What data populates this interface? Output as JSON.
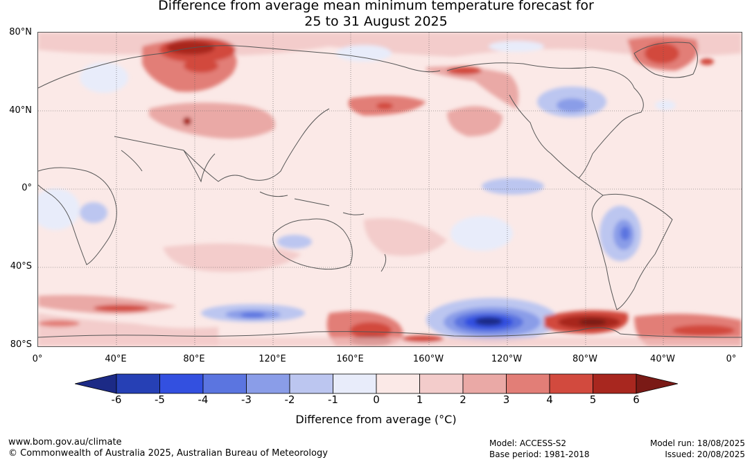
{
  "title": {
    "line1": "Difference from average mean minimum temperature forecast for",
    "line2": "25 to 31 August 2025"
  },
  "map": {
    "lat_labels": [
      "80°N",
      "40°N",
      "0°",
      "40°S",
      "80°S"
    ],
    "lon_labels": [
      "0°",
      "40°E",
      "80°E",
      "120°E",
      "160°E",
      "160°W",
      "120°W",
      "80°W",
      "40°W",
      "0°"
    ],
    "anomalies": [
      {
        "region": "Western Siberia",
        "sign": "warm",
        "max_level": 6
      },
      {
        "region": "Alaska / Yukon",
        "sign": "warm",
        "max_level": 5
      },
      {
        "region": "Greenland",
        "sign": "warm",
        "max_level": 5
      },
      {
        "region": "Great Lakes / Eastern North America",
        "sign": "cool",
        "max_level": -3
      },
      {
        "region": "South America (Paraguay / Brazil)",
        "sign": "cool",
        "max_level": -4
      },
      {
        "region": "Southern Pacific near 120°W, 70°S",
        "sign": "cool",
        "max_level": -6
      },
      {
        "region": "Southern Ocean south of Australia",
        "sign": "cool",
        "max_level": -4
      },
      {
        "region": "Antarctic Peninsula region",
        "sign": "warm",
        "max_level": 6
      }
    ]
  },
  "colorbar": {
    "ticks": [
      "-6",
      "-5",
      "-4",
      "-3",
      "-2",
      "-1",
      "0",
      "1",
      "2",
      "3",
      "4",
      "5",
      "6"
    ],
    "colors": [
      "#1c2a86",
      "#2640b5",
      "#3350e0",
      "#5b75e0",
      "#8a9de8",
      "#bcc6f0",
      "#e8ecfa",
      "#fbe9e7",
      "#f3cccb",
      "#eaa9a6",
      "#e27e77",
      "#d24a3e",
      "#a8271f",
      "#7a1a16"
    ],
    "label": "Difference from average (°C)"
  },
  "footer": {
    "url": "www.bom.gov.au/climate",
    "copyright": "© Commonwealth of Australia 2025, Australian Bureau of Meteorology",
    "model": "Model: ACCESS-S2",
    "base_period": "Base period: 1981-2018",
    "model_run": "Model run: 18/08/2025",
    "issued": "Issued: 20/08/2025"
  }
}
